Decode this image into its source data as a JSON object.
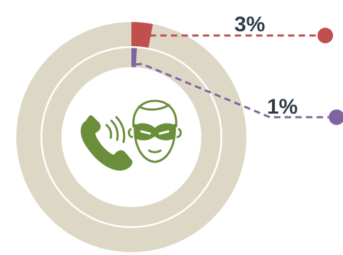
{
  "chart_data": {
    "type": "donut",
    "rings": [
      {
        "name": "",
        "value": 3,
        "unit": "%",
        "label": "3%",
        "highlight_color": "#c0504d",
        "remainder_color": "#ddd8c6"
      },
      {
        "name": "",
        "value": 1,
        "unit": "%",
        "label": "1%",
        "highlight_color": "#8064a2",
        "remainder_color": "#ddd8c6"
      }
    ],
    "legend": "none",
    "center_icon": "phone-scam-thief-icon"
  },
  "colors": {
    "track": "#ddd8c6",
    "phone": "#6b8e3a",
    "mask": "#6b8e3a",
    "text": "#2f3b47"
  }
}
